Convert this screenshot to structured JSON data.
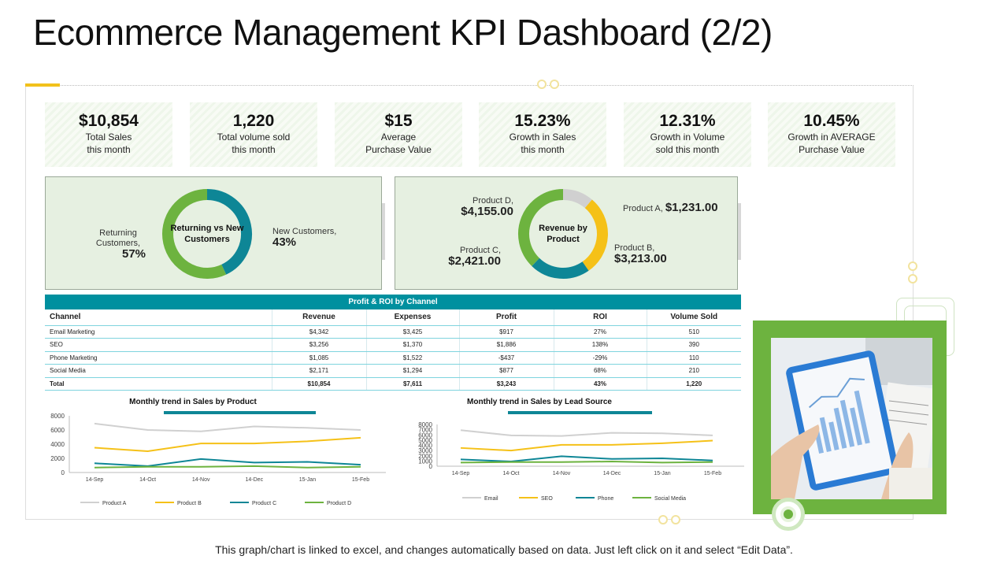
{
  "page": {
    "title": "Ecommerce Management KPI Dashboard (2/2)",
    "footer": "This graph/chart is linked to excel, and changes automatically based on data. Just left click on it and select “Edit Data”."
  },
  "kpis": [
    {
      "value": "$10,854",
      "label_1": "Total Sales",
      "label_2": "this month"
    },
    {
      "value": "1,220",
      "label_1": "Total volume sold",
      "label_2": "this month"
    },
    {
      "value": "$15",
      "label_1": "Average",
      "label_2": "Purchase Value"
    },
    {
      "value": "15.23%",
      "label_1": "Growth in Sales",
      "label_2": "this month"
    },
    {
      "value": "12.31%",
      "label_1": "Growth in Volume",
      "label_2": "sold this month"
    },
    {
      "value": "10.45%",
      "label_1": "Growth in AVERAGE",
      "label_2": "Purchase Value"
    }
  ],
  "colors": {
    "green": "#6db33f",
    "teal": "#0e8696",
    "yellow": "#f5c118",
    "gray": "#d0d0d0",
    "header_teal": "#00909f"
  },
  "chart_data": [
    {
      "type": "pie",
      "title": "Returning vs New Customers",
      "categories": [
        "Returning Customers",
        "New Customers"
      ],
      "values": [
        57,
        43
      ],
      "display": {
        "returning_name_1": "Returning",
        "returning_name_2": "Customers,",
        "returning_value": "57%",
        "new_name": "New Customers,",
        "new_value": "43%",
        "center_1": "Returning vs New",
        "center_2": "Customers"
      }
    },
    {
      "type": "pie",
      "title": "Revenue by Product",
      "categories": [
        "Product A",
        "Product B",
        "Product C",
        "Product D"
      ],
      "values": [
        1231,
        3213,
        2421,
        4155
      ],
      "display": {
        "a_name": "Product A,",
        "a_value": "$1,231.00",
        "b_name": "Product B,",
        "b_value": "$3,213.00",
        "c_name": "Product C,",
        "c_value": "$2,421.00",
        "d_name": "Product D,",
        "d_value": "$4,155.00",
        "center_1": "Revenue by",
        "center_2": "Product"
      }
    },
    {
      "type": "table",
      "title": "Profit & ROI by Channel",
      "columns": [
        "Channel",
        "Revenue",
        "Expenses",
        "Profit",
        "ROI",
        "Volume Sold"
      ],
      "rows": [
        [
          "Email Marketing",
          "$4,342",
          "$3,425",
          "$917",
          "27%",
          "510"
        ],
        [
          "SEO",
          "$3,256",
          "$1,370",
          "$1,886",
          "138%",
          "390"
        ],
        [
          "Phone Marketing",
          "$1,085",
          "$1,522",
          "-$437",
          "-29%",
          "110"
        ],
        [
          "Social Media",
          "$2,171",
          "$1,294",
          "$877",
          "68%",
          "210"
        ],
        [
          "Total",
          "$10,854",
          "$7,611",
          "$3,243",
          "43%",
          "1,220"
        ]
      ]
    },
    {
      "type": "line",
      "title": "Monthly trend in Sales by Product",
      "categories": [
        "14-Sep",
        "14-Oct",
        "14-Nov",
        "14-Dec",
        "15-Jan",
        "15-Feb"
      ],
      "y_ticks": [
        "0",
        "2000",
        "4000",
        "6000",
        "8000"
      ],
      "ylim": [
        0,
        8000
      ],
      "grid": false,
      "legend": "bottom",
      "series": [
        {
          "name": "Product A",
          "color": "#d0d0d0",
          "values": [
            6900,
            6000,
            5800,
            6500,
            6300,
            6000
          ]
        },
        {
          "name": "Product B",
          "color": "#f5c118",
          "values": [
            3500,
            3000,
            4100,
            4100,
            4400,
            4900
          ]
        },
        {
          "name": "Product C",
          "color": "#0e8696",
          "values": [
            1300,
            900,
            1900,
            1400,
            1500,
            1100
          ]
        },
        {
          "name": "Product D",
          "color": "#6db33f",
          "values": [
            700,
            800,
            800,
            900,
            700,
            800
          ]
        }
      ]
    },
    {
      "type": "line",
      "title": "Monthly trend in Sales by Lead Source",
      "categories": [
        "14-Sep",
        "14-Oct",
        "14-Nov",
        "14-Dec",
        "15-Jan",
        "15-Feb"
      ],
      "y_ticks": [
        "0",
        "2000",
        "4000",
        "6000",
        "8000"
      ],
      "y_ticks_minor": [
        "1000",
        "3000",
        "5000",
        "7000"
      ],
      "ylim": [
        0,
        8000
      ],
      "grid": false,
      "legend": "bottom",
      "series": [
        {
          "name": "Email",
          "color": "#d0d0d0",
          "values": [
            6900,
            5900,
            5800,
            6400,
            6300,
            5900
          ]
        },
        {
          "name": "SEO",
          "color": "#f5c118",
          "values": [
            3500,
            3000,
            4100,
            4100,
            4400,
            4900
          ]
        },
        {
          "name": "Phone",
          "color": "#0e8696",
          "values": [
            1300,
            900,
            1900,
            1400,
            1500,
            1100
          ]
        },
        {
          "name": "Social Media",
          "color": "#6db33f",
          "values": [
            700,
            800,
            800,
            900,
            700,
            800
          ]
        }
      ]
    }
  ],
  "image": {
    "icon": "tablet-analytics-photo"
  }
}
